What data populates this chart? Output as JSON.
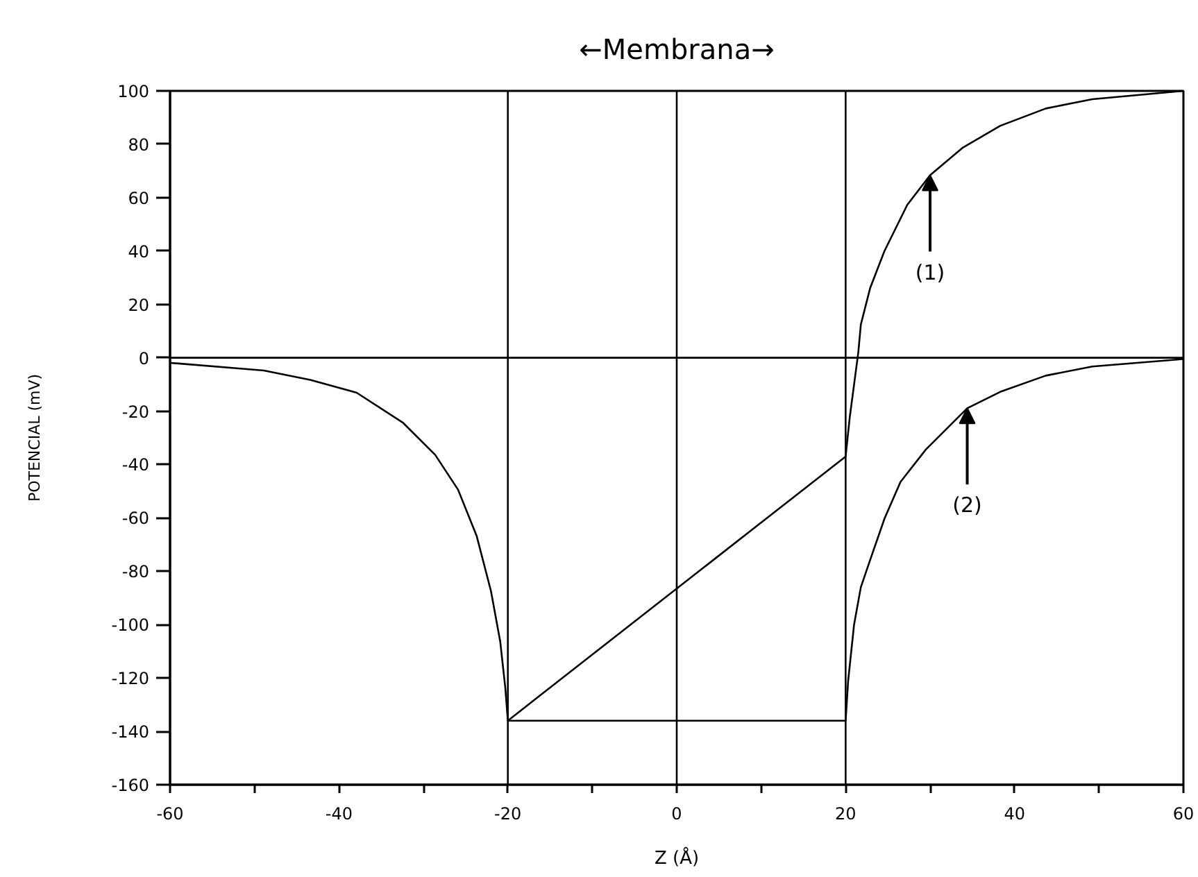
{
  "chart_data": {
    "type": "line",
    "title": "←Membrana→",
    "xlabel": "Z (Å)",
    "ylabel": "POTENCIAL (mV)",
    "xlim": [
      -60,
      60
    ],
    "xticks": [
      -60,
      {
        "value": -50,
        "label": null
      },
      -40,
      {
        "value": -30,
        "label": null
      },
      -20,
      {
        "value": -10,
        "label": null
      },
      0,
      {
        "value": 10,
        "label": null
      },
      20,
      {
        "value": 30,
        "label": null
      },
      40,
      {
        "value": 50,
        "label": null
      },
      60
    ],
    "ylim": [
      -160,
      100
    ],
    "yticks": [
      -160,
      -140,
      -120,
      -100,
      -80,
      -60,
      -40,
      -20,
      0,
      20,
      40,
      60,
      80,
      100
    ],
    "grid": false,
    "marker": "none",
    "line_style": "solid",
    "series": [
      {
        "color": "#000000",
        "x": [
          -60,
          -48.9,
          -43.4,
          -37.9,
          -32.4,
          -28.6,
          -25.9,
          -23.7,
          -22.0,
          -20.9,
          -20.3,
          -20
        ],
        "values": [
          -1.9,
          -4.8,
          -8.3,
          -13.1,
          -24.4,
          -36.4,
          -49.4,
          -66.7,
          -87.4,
          -106.4,
          -123.7,
          -136
        ]
      },
      {
        "color": "#000000",
        "x": [
          -20,
          20,
          20.5,
          21,
          21.5,
          21.8,
          22.9,
          24.6,
          27.3,
          30,
          33.9,
          38.3,
          43.7,
          49.2,
          60
        ],
        "values": [
          -136,
          -37,
          -22,
          -10,
          2,
          12.4,
          26.1,
          40,
          57.3,
          68.4,
          78.8,
          86.9,
          93.4,
          96.9,
          100
        ]
      },
      {
        "color": "#000000",
        "x": [
          -20,
          20,
          20.3,
          21,
          21.8,
          22.9,
          24.6,
          26.5,
          29.5,
          34.4,
          38.3,
          43.7,
          49.2,
          60
        ],
        "values": [
          -136,
          -136,
          -121,
          -100,
          -86,
          -75.8,
          -60.3,
          -46.5,
          -34.4,
          -18.9,
          -12.8,
          -6.7,
          -3.3,
          -0.5
        ]
      }
    ],
    "ref_lines": [
      {
        "axis": "x",
        "value": -20,
        "color": "#000000"
      },
      {
        "axis": "x",
        "value": 0,
        "color": "#000000"
      },
      {
        "axis": "x",
        "value": 20,
        "color": "#000000"
      },
      {
        "axis": "y",
        "value": 0,
        "color": "#000000"
      }
    ],
    "annotations": [
      {
        "text": "(1)",
        "x": 30,
        "y": 68.4
      },
      {
        "text": "(2)",
        "x": 34.4,
        "y": -18.9
      }
    ]
  }
}
